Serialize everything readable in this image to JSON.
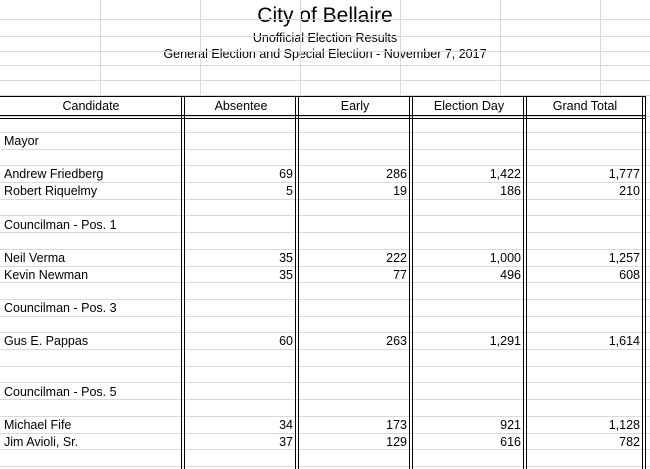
{
  "header": {
    "title": "City of Bellaire",
    "subtitle": "Unofficial Election Results",
    "election": "General Election and Special Election - November 7, 2017"
  },
  "columns": [
    "Candidate",
    "Absentee",
    "Early",
    "Election Day",
    "Grand Total"
  ],
  "rows": [
    {
      "kind": "section",
      "label": "Mayor"
    },
    {
      "kind": "blank"
    },
    {
      "kind": "candidate",
      "name": "Andrew Friedberg",
      "absentee": "69",
      "early": "286",
      "election_day": "1,422",
      "grand_total": "1,777"
    },
    {
      "kind": "candidate",
      "name": "Robert Riquelmy",
      "absentee": "5",
      "early": "19",
      "election_day": "186",
      "grand_total": "210"
    },
    {
      "kind": "blank"
    },
    {
      "kind": "section",
      "label": "Councilman - Pos. 1"
    },
    {
      "kind": "blank"
    },
    {
      "kind": "candidate",
      "name": "Neil Verma",
      "absentee": "35",
      "early": "222",
      "election_day": "1,000",
      "grand_total": "1,257"
    },
    {
      "kind": "candidate",
      "name": "Kevin Newman",
      "absentee": "35",
      "early": "77",
      "election_day": "496",
      "grand_total": "608"
    },
    {
      "kind": "blank"
    },
    {
      "kind": "section",
      "label": "Councilman - Pos. 3"
    },
    {
      "kind": "blank"
    },
    {
      "kind": "candidate",
      "name": "Gus E. Pappas",
      "absentee": "60",
      "early": "263",
      "election_day": "1,291",
      "grand_total": "1,614"
    },
    {
      "kind": "blank"
    },
    {
      "kind": "blank"
    },
    {
      "kind": "section",
      "label": "Councilman - Pos. 5"
    },
    {
      "kind": "blank"
    },
    {
      "kind": "candidate",
      "name": "Michael Fife",
      "absentee": "34",
      "early": "173",
      "election_day": "921",
      "grand_total": "1,128"
    },
    {
      "kind": "candidate",
      "name": "Jim Avioli, Sr.",
      "absentee": "37",
      "early": "129",
      "election_day": "616",
      "grand_total": "782"
    }
  ]
}
